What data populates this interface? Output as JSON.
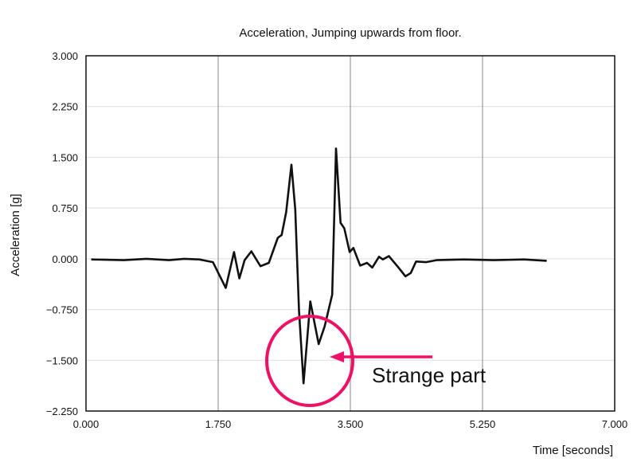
{
  "chart_data": {
    "type": "line",
    "title": "Acceleration, Jumping upwards from floor.",
    "xlabel": "Time [seconds]",
    "ylabel": "Acceleration [g]",
    "xlim": [
      0,
      7
    ],
    "ylim": [
      -2.25,
      3
    ],
    "xticks": [
      "0.000",
      "1.750",
      "3.500",
      "5.250",
      "7.000"
    ],
    "yticks": [
      "3.000",
      "2.250",
      "1.500",
      "0.750",
      "0.000",
      "-0.750",
      "-1.500",
      "-2.250"
    ],
    "grid": true,
    "line_color": "#111111",
    "series": [
      {
        "x": [
          0.07,
          0.5,
          0.8,
          1.1,
          1.3,
          1.5,
          1.68,
          1.85,
          1.96,
          2.03,
          2.1,
          2.19,
          2.31,
          2.42,
          2.54,
          2.59,
          2.65,
          2.72,
          2.77,
          2.82,
          2.88,
          2.97,
          3.08,
          3.16,
          3.26,
          3.31,
          3.37,
          3.42,
          3.49,
          3.54,
          3.63,
          3.72,
          3.79,
          3.88,
          3.93,
          4.01,
          4.13,
          4.23,
          4.3,
          4.37,
          4.5,
          4.64,
          5.0,
          5.4,
          5.8,
          6.1
        ],
        "y": [
          -0.01,
          -0.02,
          0.0,
          -0.02,
          0.0,
          -0.01,
          -0.05,
          -0.43,
          0.1,
          -0.29,
          -0.02,
          0.11,
          -0.11,
          -0.06,
          0.31,
          0.35,
          0.69,
          1.39,
          0.73,
          -0.76,
          -1.84,
          -0.63,
          -1.26,
          -1.0,
          -0.53,
          1.63,
          0.53,
          0.45,
          0.1,
          0.16,
          -0.1,
          -0.06,
          -0.13,
          0.03,
          -0.01,
          0.04,
          -0.12,
          -0.26,
          -0.21,
          -0.04,
          -0.05,
          -0.02,
          -0.01,
          -0.02,
          -0.01,
          -0.03
        ]
      }
    ],
    "annotation": {
      "text": "Strange part",
      "color": "#ee1166",
      "target_x": 2.97,
      "target_y": -1.5
    }
  }
}
